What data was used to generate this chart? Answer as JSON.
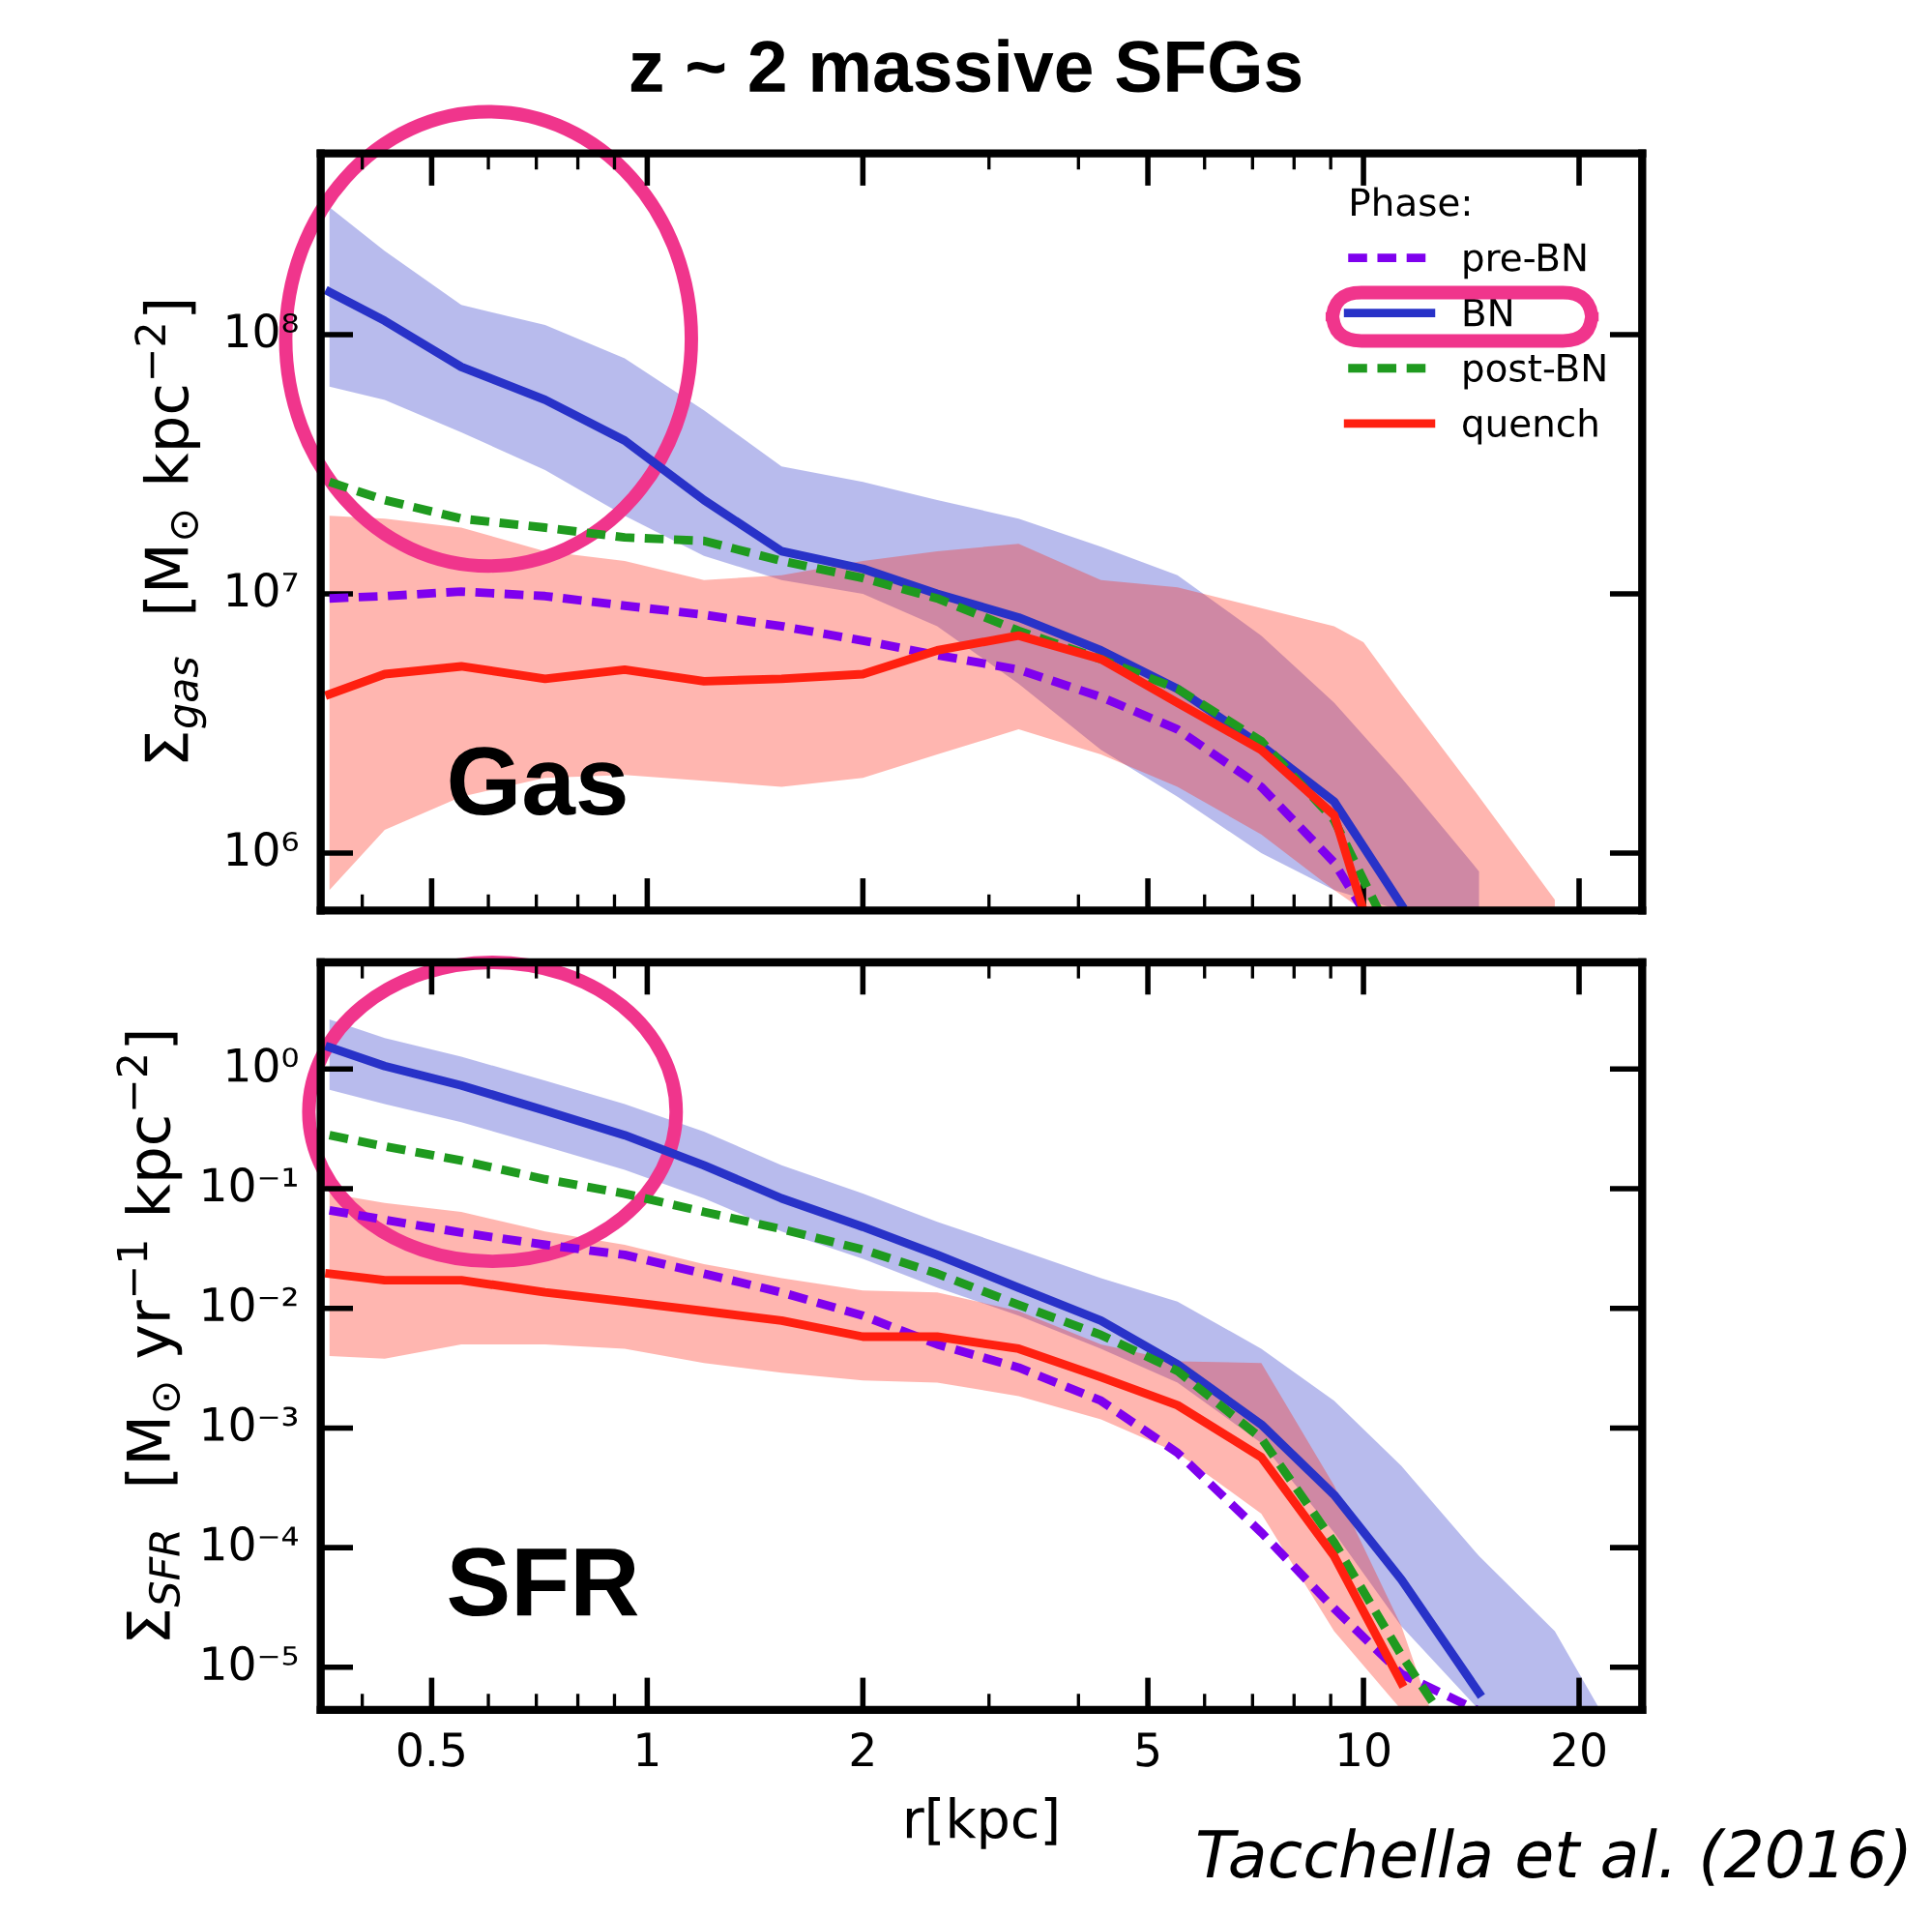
{
  "chart_data": [
    {
      "type": "line",
      "title": "z ~ 2 massive SFGs",
      "ylabel": "Σ$_{gas}$  [M$_{⊙}$ kpc$^{−2}$]",
      "legend_title": "Phase:",
      "legend": "top right",
      "log": "xy",
      "grid": false,
      "tick_labels": "y",
      "annotations": [
        "Gas"
      ],
      "xlim": [
        0.35,
        24.5
      ],
      "ylim": [
        600000,
        500000000
      ],
      "xticks": [
        0.5,
        1,
        2,
        5,
        10,
        20
      ],
      "yticks": [
        {
          "value": 1000000,
          "label": "10⁶"
        },
        {
          "value": 10000000,
          "label": "10⁷"
        },
        {
          "value": 100000000,
          "label": "10⁸"
        }
      ],
      "series": [
        {
          "name": "pre-BN",
          "color": "#7f00ee",
          "line_style": "dashed",
          "x": [
            0.36,
            0.43,
            0.55,
            0.72,
            0.93,
            1.2,
            1.54,
            2.0,
            2.54,
            3.3,
            4.3,
            5.5,
            7.2,
            9.1,
            10
          ],
          "values": [
            9600000.0,
            9800000.0,
            10200000.0,
            9800000.0,
            9000000.0,
            8300000.0,
            7500000.0,
            6600000.0,
            5800000.0,
            5100000.0,
            4000000.0,
            3000000.0,
            1800000.0,
            920000.0,
            600000.0
          ]
        },
        {
          "name": "BN",
          "color": "#2832c8",
          "line_style": "solid",
          "x": [
            0.36,
            0.43,
            0.55,
            0.72,
            0.93,
            1.2,
            1.54,
            2.0,
            2.54,
            3.3,
            4.3,
            5.5,
            7.2,
            9.1,
            11.3,
            14.5
          ],
          "values": [
            146000000.0,
            113000000.0,
            75000000.0,
            56000000.0,
            39000000.0,
            23000000.0,
            14600000.0,
            12500000.0,
            10000000.0,
            8100000.0,
            6050000.0,
            4300000.0,
            2600000.0,
            1580000.0,
            630000.0,
            null
          ],
          "upper": [
            310000000.0,
            210000000.0,
            130000000.0,
            109000000.0,
            81000000.0,
            51000000.0,
            31000000.0,
            27000000.0,
            23000000.0,
            19500000.0,
            15200000.0,
            11800000.0,
            6900000.0,
            3800000.0,
            1950000.0,
            850000.0
          ],
          "lower": [
            63000000.0,
            56000000.0,
            42000000.0,
            30000000.0,
            20000000.0,
            14000000.0,
            11300000.0,
            10000000.0,
            7500000.0,
            4500000.0,
            2500000.0,
            1650000.0,
            1000000.0,
            720000.0,
            600000.0,
            600000.0
          ]
        },
        {
          "name": "post-BN",
          "color": "#1f9a1f",
          "line_style": "dashed",
          "x": [
            0.36,
            0.43,
            0.55,
            0.72,
            0.93,
            1.2,
            1.54,
            2.0,
            2.54,
            3.3,
            4.3,
            5.5,
            7.2,
            9.1,
            10.5
          ],
          "values": [
            27000000.0,
            23000000.0,
            19500000.0,
            18000000.0,
            16500000.0,
            16000000.0,
            13400000.0,
            11500000.0,
            9600000.0,
            7200000.0,
            5600000.0,
            4300000.0,
            2700000.0,
            1340000.0,
            600000.0
          ]
        },
        {
          "name": "quench",
          "color": "#ff2010",
          "line_style": "solid",
          "x": [
            0.36,
            0.43,
            0.55,
            0.72,
            0.93,
            1.2,
            1.54,
            2.0,
            2.54,
            3.3,
            4.3,
            5.5,
            7.2,
            9.1,
            10,
            11.3,
            14.5,
            18.5
          ],
          "values": [
            4100000.0,
            4900000.0,
            5250000.0,
            4700000.0,
            5100000.0,
            4600000.0,
            4700000.0,
            4900000.0,
            6050000.0,
            6900000.0,
            5600000.0,
            3800000.0,
            2500000.0,
            1400000.0,
            600000.0,
            null,
            null,
            null
          ],
          "upper": [
            20000000.0,
            19500000.0,
            18000000.0,
            14600000.0,
            13400000.0,
            11300000.0,
            11800000.0,
            13400000.0,
            14600000.0,
            15600000.0,
            11300000.0,
            10600000.0,
            8800000.0,
            7500000.0,
            6500000.0,
            4100000.0,
            1650000.0,
            660000.0
          ],
          "lower": [
            720000.0,
            1230000.0,
            1650000.0,
            1950000.0,
            2000000.0,
            1900000.0,
            1800000.0,
            1950000.0,
            2400000.0,
            3000000.0,
            2400000.0,
            1800000.0,
            1180000.0,
            720000.0,
            600000.0,
            600000.0,
            600000.0,
            600000.0
          ]
        }
      ]
    },
    {
      "type": "line",
      "xlabel": "r[kpc]",
      "ylabel": "Σ$_{SFR}$  [M$_{⊙}$ yr$^{−1}$ kpc$^{−2}$]",
      "log": "xy",
      "grid": false,
      "annotations": [
        "SFR",
        "Tacchella et al. (2016)"
      ],
      "xlim": [
        0.35,
        24.5
      ],
      "ylim": [
        4.4e-06,
        7.8
      ],
      "xticks": [
        0.5,
        1,
        2,
        5,
        10,
        20
      ],
      "yticks": [
        {
          "value": 1e-05,
          "label": "10⁻⁵"
        },
        {
          "value": 0.0001,
          "label": "10⁻⁴"
        },
        {
          "value": 0.001,
          "label": "10⁻³"
        },
        {
          "value": 0.01,
          "label": "10⁻²"
        },
        {
          "value": 0.1,
          "label": "10⁻¹"
        },
        {
          "value": 1,
          "label": "10⁰"
        }
      ],
      "series": [
        {
          "color": "#7f00ee",
          "line_style": "dashed",
          "x": [
            0.36,
            0.43,
            0.55,
            0.72,
            0.93,
            1.2,
            1.54,
            2.0,
            2.54,
            3.3,
            4.3,
            5.5,
            7.2,
            9.1,
            11.3,
            14.4
          ],
          "values": [
            0.066,
            0.055,
            0.043,
            0.034,
            0.028,
            0.0195,
            0.0136,
            0.0087,
            0.005,
            0.0032,
            0.00169,
            0.00062,
            0.000134,
            3.1e-05,
            8.8e-06,
            4.4e-06
          ]
        },
        {
          "color": "#2832c8",
          "line_style": "solid",
          "x": [
            0.36,
            0.43,
            0.55,
            0.72,
            0.93,
            1.2,
            1.54,
            2.0,
            2.54,
            3.3,
            4.3,
            5.5,
            7.2,
            9.1,
            11.3,
            14.5,
            18.5,
            21.4
          ],
          "values": [
            1.52,
            1.06,
            0.73,
            0.45,
            0.28,
            0.157,
            0.083,
            0.048,
            0.028,
            0.0149,
            0.0079,
            0.0034,
            0.00107,
            0.000276,
            5.4e-05,
            6.1e-06,
            null,
            null
          ],
          "upper": [
            2.6,
            1.82,
            1.27,
            0.8,
            0.51,
            0.3,
            0.157,
            0.091,
            0.053,
            0.031,
            0.0179,
            0.0114,
            0.0046,
            0.00169,
            0.00048,
            8.5e-05,
            2e-05,
            4.4e-06
          ],
          "lower": [
            0.67,
            0.51,
            0.36,
            0.226,
            0.144,
            0.083,
            0.044,
            0.026,
            0.0149,
            0.0087,
            0.0046,
            0.0024,
            0.00075,
            0.000134,
            2.2e-05,
            4.4e-06,
            4.4e-06,
            4.4e-06
          ]
        },
        {
          "color": "#1f9a1f",
          "line_style": "dashed",
          "x": [
            0.36,
            0.43,
            0.55,
            0.72,
            0.93,
            1.2,
            1.54,
            2.0,
            2.54,
            3.3,
            4.3,
            5.5,
            7.2,
            9.1,
            11.3,
            12.7
          ],
          "values": [
            0.28,
            0.226,
            0.172,
            0.12,
            0.091,
            0.064,
            0.046,
            0.031,
            0.0195,
            0.0107,
            0.006,
            0.003,
            0.00082,
            0.000111,
            1.26e-05,
            4.4e-06
          ]
        },
        {
          "color": "#ff2010",
          "line_style": "solid",
          "x": [
            0.36,
            0.43,
            0.55,
            0.72,
            0.93,
            1.2,
            1.54,
            2.0,
            2.54,
            3.3,
            4.3,
            5.5,
            7.2,
            9.1,
            11.3,
            12.4
          ],
          "values": [
            0.0195,
            0.0172,
            0.0172,
            0.0136,
            0.0114,
            0.0095,
            0.0079,
            0.0058,
            0.0058,
            0.0046,
            0.00266,
            0.00155,
            0.00057,
            8.5e-05,
            7.4e-06,
            null
          ],
          "upper": [
            0.091,
            0.076,
            0.064,
            0.044,
            0.034,
            0.0234,
            0.0179,
            0.0141,
            0.0136,
            0.0095,
            0.005,
            0.0036,
            0.0035,
            0.00033,
            2.2e-05,
            4.4e-06
          ],
          "lower": [
            0.004,
            0.0038,
            0.005,
            0.005,
            0.0046,
            0.0035,
            0.0029,
            0.0025,
            0.0024,
            0.00185,
            0.00118,
            0.00062,
            0.000192,
            2e-05,
            4.4e-06,
            4.4e-06
          ]
        }
      ]
    }
  ]
}
